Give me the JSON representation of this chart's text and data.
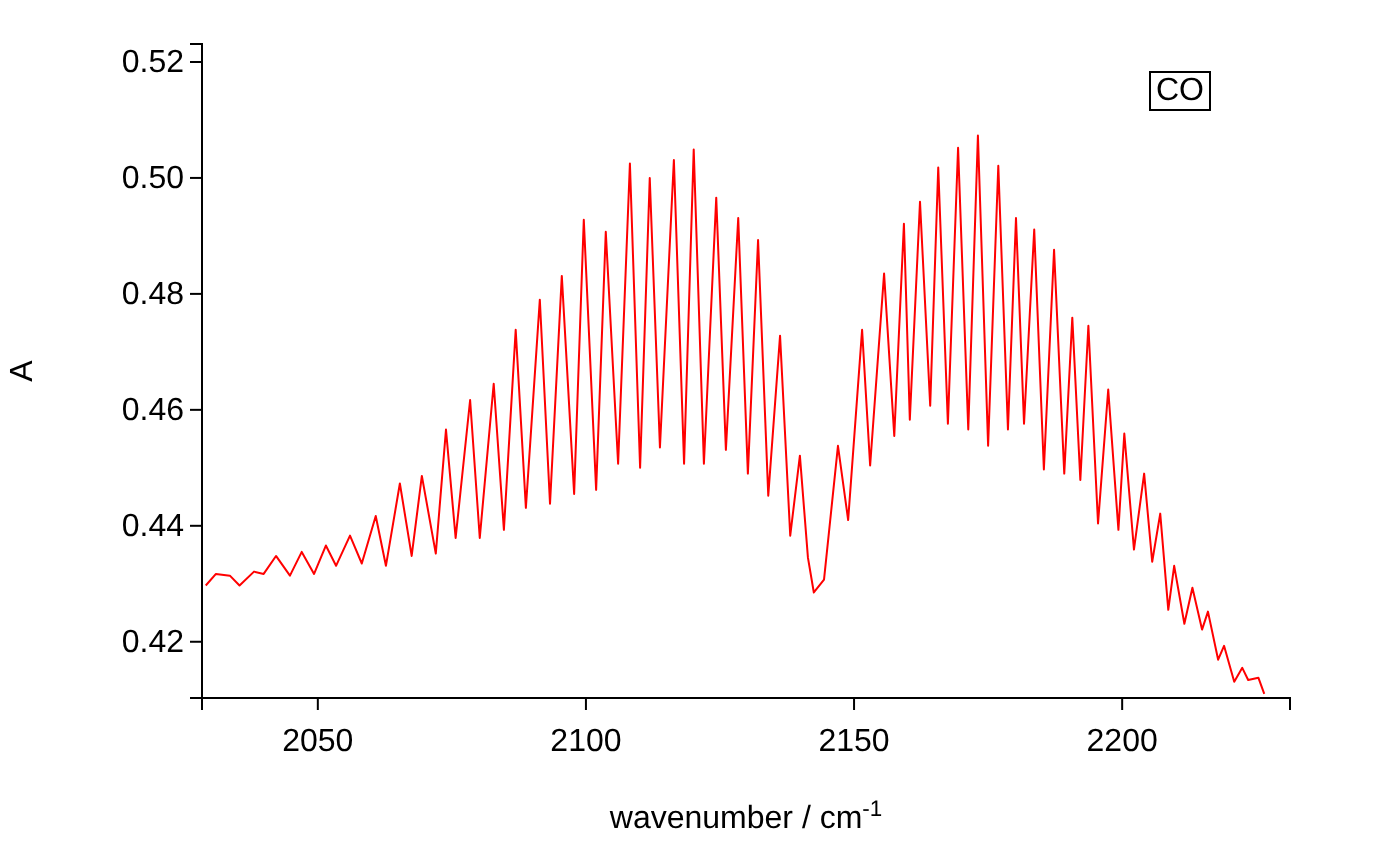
{
  "chart_data": {
    "type": "line",
    "xlabel": "wavenumber / cm$^{-1}$",
    "ylabel": "A",
    "annotations": [
      "CO"
    ],
    "xlim": [
      2028.4,
      2231.3
    ],
    "ylim": [
      0.4103,
      0.5231
    ],
    "xticks": [
      2050,
      2100,
      2150,
      2200
    ],
    "yticks": [
      0.42,
      0.44,
      0.46,
      0.48,
      {
        "value": 0.5,
        "label": "0.50"
      },
      0.52
    ],
    "grid": false,
    "marker": "none",
    "line_style": "solid",
    "series": [
      {
        "color": "#ff0000",
        "x": [
          2029.1,
          2031.0,
          2033.6,
          2035.4,
          2038.1,
          2039.9,
          2042.2,
          2044.8,
          2047.0,
          2049.3,
          2051.5,
          2053.4,
          2056.0,
          2058.2,
          2060.8,
          2062.7,
          2065.3,
          2067.5,
          2069.4,
          2072.0,
          2073.9,
          2075.7,
          2078.4,
          2080.2,
          2082.8,
          2084.7,
          2086.9,
          2088.8,
          2091.4,
          2093.3,
          2095.5,
          2097.8,
          2099.6,
          2101.9,
          2103.7,
          2106.0,
          2108.2,
          2110.1,
          2111.9,
          2113.8,
          2116.4,
          2118.3,
          2120.1,
          2122.0,
          2124.3,
          2126.1,
          2128.4,
          2130.2,
          2132.1,
          2134.0,
          2136.2,
          2138.1,
          2139.9,
          2141.4,
          2142.5,
          2144.4,
          2147.0,
          2148.9,
          2151.5,
          2153.0,
          2155.6,
          2157.5,
          2159.3,
          2160.4,
          2162.3,
          2164.2,
          2165.7,
          2167.5,
          2169.4,
          2171.3,
          2173.1,
          2175.0,
          2176.9,
          2178.7,
          2180.2,
          2181.7,
          2183.6,
          2185.4,
          2187.3,
          2189.2,
          2190.7,
          2192.2,
          2193.7,
          2195.5,
          2197.4,
          2199.3,
          2200.4,
          2202.2,
          2204.1,
          2205.6,
          2207.1,
          2208.6,
          2209.7,
          2211.6,
          2213.1,
          2214.9,
          2216.0,
          2217.9,
          2219.0,
          2220.9,
          2222.4,
          2223.5,
          2225.4,
          2226.5
        ],
        "values": [
          0.4297,
          0.4317,
          0.4314,
          0.4297,
          0.4321,
          0.4317,
          0.4348,
          0.4314,
          0.4355,
          0.4317,
          0.4366,
          0.4331,
          0.4383,
          0.4335,
          0.4417,
          0.4331,
          0.4473,
          0.4348,
          0.4486,
          0.4352,
          0.4566,
          0.4379,
          0.4617,
          0.4379,
          0.4645,
          0.4393,
          0.4738,
          0.4431,
          0.479,
          0.4438,
          0.4831,
          0.4455,
          0.4928,
          0.4462,
          0.4907,
          0.4507,
          0.5025,
          0.45,
          0.5,
          0.4535,
          0.5031,
          0.4507,
          0.5049,
          0.4507,
          0.4966,
          0.4531,
          0.4931,
          0.449,
          0.4893,
          0.4452,
          0.4728,
          0.4383,
          0.4521,
          0.4345,
          0.4285,
          0.4307,
          0.4538,
          0.441,
          0.4738,
          0.4504,
          0.4835,
          0.4555,
          0.4921,
          0.4583,
          0.4959,
          0.4607,
          0.5018,
          0.4576,
          0.5052,
          0.4566,
          0.5073,
          0.4538,
          0.5021,
          0.4566,
          0.4931,
          0.4576,
          0.4911,
          0.4497,
          0.4876,
          0.449,
          0.4759,
          0.4479,
          0.4745,
          0.4404,
          0.4635,
          0.4393,
          0.4559,
          0.4359,
          0.449,
          0.4338,
          0.4421,
          0.4255,
          0.4331,
          0.4231,
          0.4293,
          0.4221,
          0.4252,
          0.4169,
          0.4193,
          0.4131,
          0.4155,
          0.4134,
          0.4138,
          0.411
        ]
      }
    ]
  }
}
